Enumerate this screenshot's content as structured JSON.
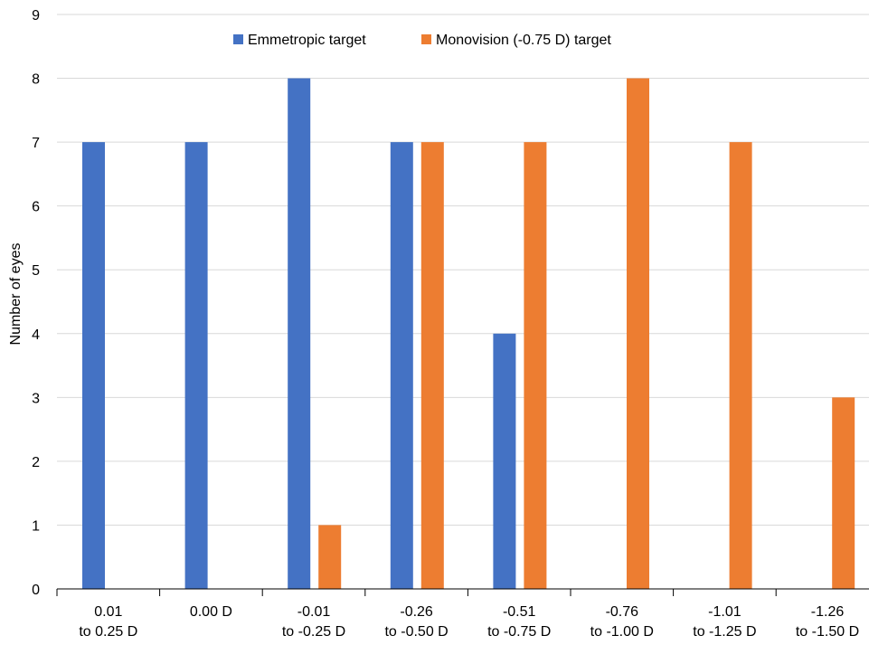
{
  "chart_data": {
    "type": "bar",
    "title": "",
    "xlabel": "",
    "ylabel": "Number of eyes",
    "ylim": [
      0,
      9
    ],
    "yticks": [
      0,
      1,
      2,
      3,
      4,
      5,
      6,
      7,
      8,
      9
    ],
    "grid": true,
    "legend_position": "top-center",
    "categories": [
      [
        "0.01",
        "to 0.25 D"
      ],
      [
        "0.00 D"
      ],
      [
        "-0.01",
        "to -0.25 D"
      ],
      [
        "-0.26",
        "to -0.50 D"
      ],
      [
        "-0.51",
        "to -0.75 D"
      ],
      [
        "-0.76",
        "to -1.00 D"
      ],
      [
        "-1.01",
        "to -1.25 D"
      ],
      [
        "-1.26",
        "to -1.50 D"
      ]
    ],
    "series": [
      {
        "name": "Emmetropic target",
        "color": "#4472C4",
        "values": [
          7,
          7,
          8,
          7,
          4,
          0,
          0,
          0
        ]
      },
      {
        "name": "Monovision (-0.75 D) target",
        "color": "#ED7D31",
        "values": [
          0,
          0,
          1,
          7,
          7,
          8,
          7,
          3
        ]
      }
    ]
  }
}
